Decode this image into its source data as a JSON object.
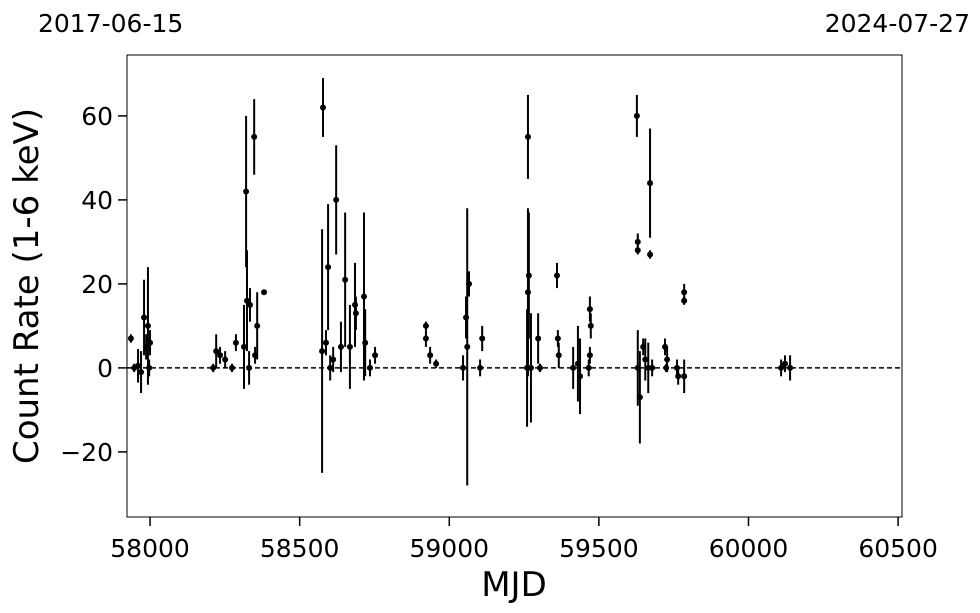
{
  "chart_data": {
    "type": "errorbar_scatter",
    "xlabel": "MJD",
    "ylabel": "Count Rate (1-6 keV)",
    "annotations": [
      "2017-06-15",
      "2024-07-27"
    ],
    "xlim": [
      57923,
      60513
    ],
    "ylim": [
      -35.5,
      74.5
    ],
    "xticks": [
      58000,
      58500,
      59000,
      59500,
      60000,
      60500
    ],
    "yticks": [
      {
        "value": -20,
        "label": "−20"
      },
      0,
      20,
      40,
      60
    ],
    "hline": 0,
    "color": "#000000",
    "series": [
      {
        "x": [
          57936,
          57947,
          57960,
          57970,
          57980,
          57987,
          57993,
          58000,
          57997,
          58211,
          58221,
          58234,
          58251,
          58274,
          58287,
          58314,
          58321,
          58324,
          58334,
          58331,
          58348,
          58358,
          58351,
          58381,
          58578,
          58575,
          58588,
          58595,
          58602,
          58612,
          58622,
          58638,
          58652,
          58668,
          58685,
          58688,
          58715,
          58719,
          58735,
          58752,
          58922,
          58922,
          58936,
          58956,
          59060,
          59066,
          59056,
          59046,
          59103,
          59110,
          59263,
          59263,
          59266,
          59260,
          59273,
          59297,
          59303,
          59360,
          59363,
          59366,
          59414,
          59430,
          59437,
          59470,
          59473,
          59470,
          59466,
          59627,
          59630,
          59630,
          59630,
          59637,
          59648,
          59655,
          59665,
          59671,
          59671,
          59678,
          59721,
          59728,
          59725,
          59761,
          59765,
          59785,
          59785,
          59785,
          60109,
          60122,
          60139
        ],
        "values": [
          7,
          0,
          0.5,
          -1,
          12,
          5,
          10,
          6,
          0,
          0,
          4,
          3,
          2,
          0,
          6,
          5,
          42,
          16,
          15,
          0,
          55,
          10,
          3,
          18,
          62,
          4,
          6,
          24,
          0,
          2,
          40,
          5,
          21,
          5,
          15,
          13,
          17,
          6,
          0,
          3,
          10,
          7,
          3,
          1,
          5,
          20,
          12,
          0,
          0,
          7,
          55,
          18,
          22,
          0,
          0,
          7,
          0,
          22,
          7,
          3,
          0,
          1,
          -2,
          14,
          10,
          3,
          0,
          60,
          30,
          28,
          0,
          -7,
          5,
          2,
          0,
          27,
          44,
          0,
          5,
          2,
          0,
          0,
          -2,
          18,
          16,
          -2,
          0,
          1,
          0
        ],
        "errors": [
          1,
          1,
          4,
          5,
          9,
          3,
          14,
          3,
          2,
          1,
          4,
          2,
          2,
          1,
          2,
          10,
          18,
          12,
          4,
          4,
          9,
          8,
          2,
          0.5,
          7,
          29,
          3,
          15,
          3,
          3,
          13,
          6,
          16,
          10,
          10,
          4,
          20,
          8,
          2,
          2,
          1,
          2,
          2,
          1,
          33,
          3,
          5,
          3,
          2,
          3,
          10,
          20,
          15,
          14,
          13,
          6,
          1,
          3,
          2,
          3,
          5,
          9,
          9,
          3,
          3,
          2,
          2,
          5,
          2,
          1,
          9,
          11,
          2,
          5,
          6,
          1,
          13,
          2,
          2,
          3,
          1,
          2,
          2,
          2,
          1,
          4,
          2,
          2,
          3
        ]
      }
    ]
  }
}
